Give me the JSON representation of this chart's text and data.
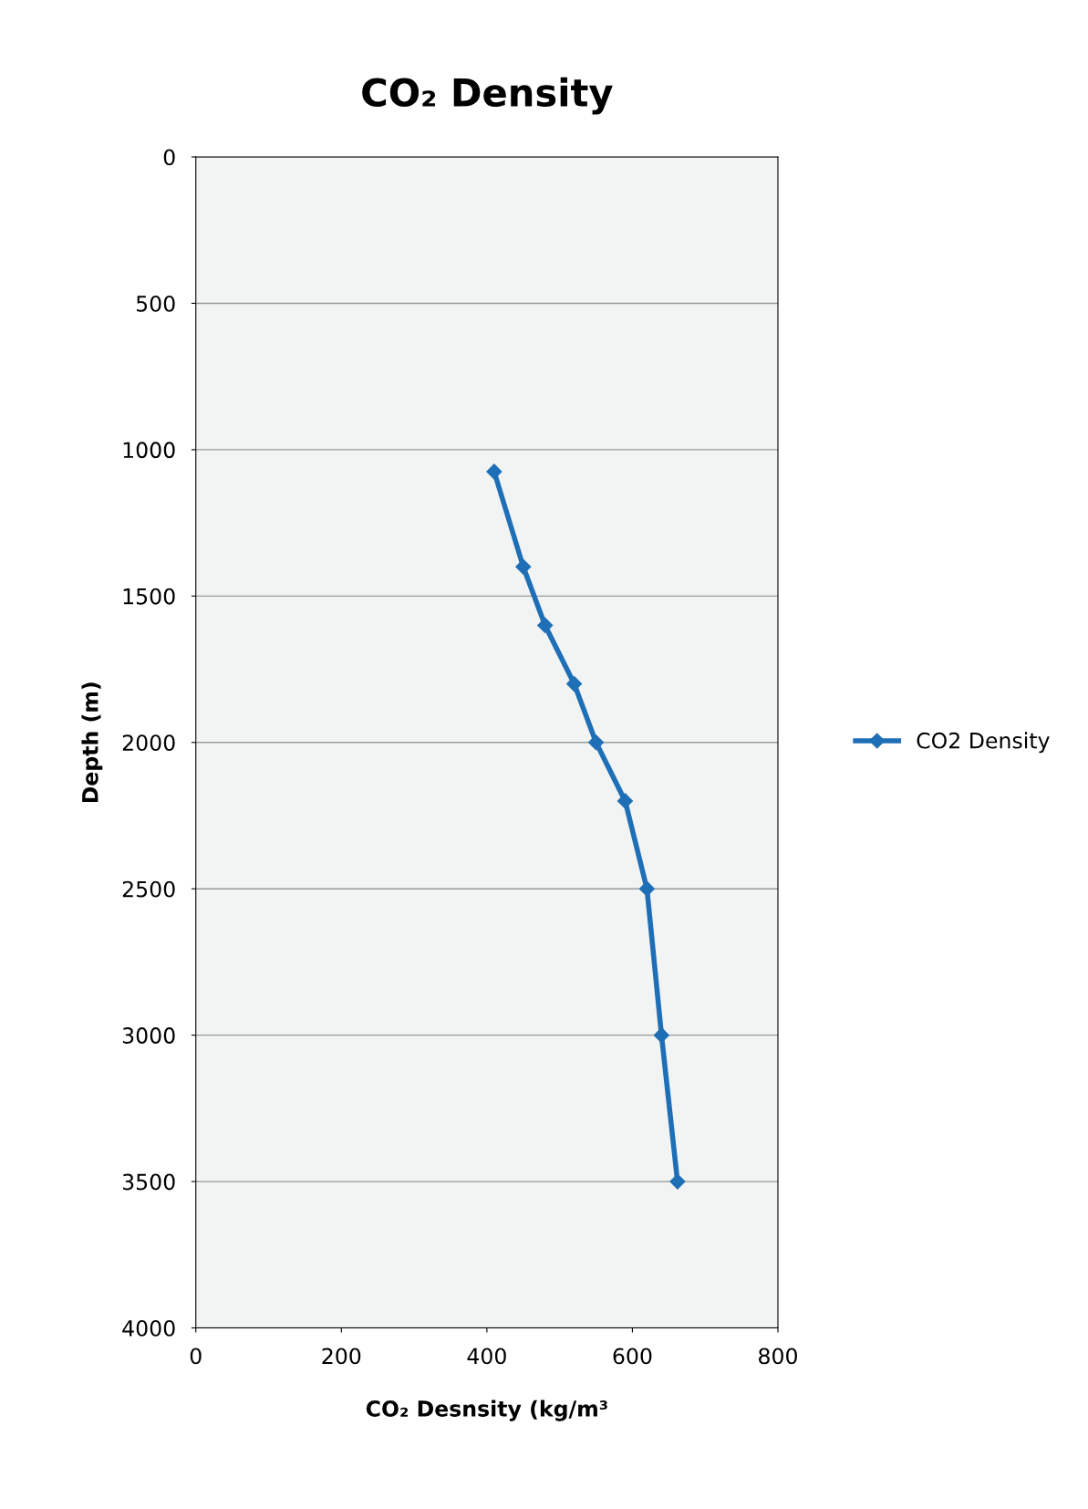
{
  "chart_data": {
    "type": "line",
    "title": "CO₂ Density",
    "xlabel": "CO₂ Desnsity (kg/m³",
    "ylabel": "Depth (m)",
    "x": [
      410,
      450,
      480,
      520,
      550,
      590,
      620,
      640,
      662
    ],
    "series": [
      {
        "name": "CO2 Density",
        "color": "#1f6fb6",
        "values": [
          1075,
          1400,
          1600,
          1800,
          2000,
          2200,
          2500,
          3000,
          3500
        ]
      }
    ],
    "xlim": [
      0,
      800
    ],
    "xticks": [
      0,
      200,
      400,
      600,
      800
    ],
    "ylim": [
      4000,
      0
    ],
    "yticks": [
      0,
      500,
      1000,
      1500,
      2000,
      2500,
      3000,
      3500,
      4000
    ],
    "grid": "y",
    "legend": "right",
    "marker": "diamond",
    "line_style": "solid"
  }
}
